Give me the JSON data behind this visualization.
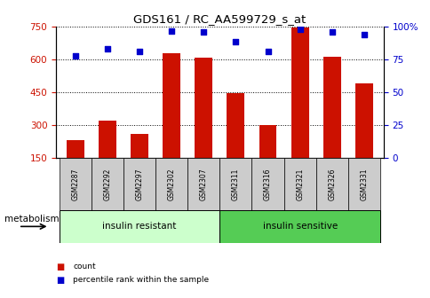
{
  "title": "GDS161 / RC_AA599729_s_at",
  "categories": [
    "GSM2287",
    "GSM2292",
    "GSM2297",
    "GSM2302",
    "GSM2307",
    "GSM2311",
    "GSM2316",
    "GSM2321",
    "GSM2326",
    "GSM2331"
  ],
  "bar_values": [
    230,
    320,
    258,
    630,
    610,
    448,
    300,
    745,
    615,
    490
  ],
  "percentile_values": [
    78,
    83,
    81,
    97,
    96,
    89,
    81,
    98,
    96,
    94
  ],
  "group1_label": "insulin resistant",
  "group2_label": "insulin sensitive",
  "group1_count": 5,
  "group2_count": 5,
  "bar_color": "#cc1100",
  "dot_color": "#0000cc",
  "ylim_left": [
    150,
    750
  ],
  "ylim_right": [
    0,
    100
  ],
  "yticks_left": [
    150,
    300,
    450,
    600,
    750
  ],
  "yticks_right": [
    0,
    25,
    50,
    75,
    100
  ],
  "ylabel_left_color": "#cc1100",
  "ylabel_right_color": "#0000cc",
  "group1_bg": "#ccffcc",
  "group2_bg": "#55cc55",
  "sample_bg": "#cccccc",
  "legend_count_label": "count",
  "legend_pct_label": "percentile rank within the sample",
  "metabolism_label": "metabolism"
}
